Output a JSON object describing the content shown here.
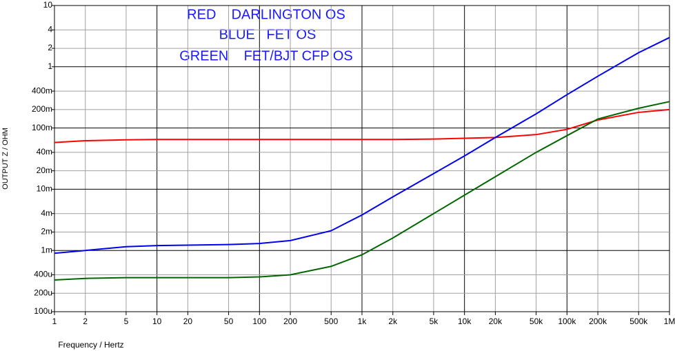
{
  "chart_data": {
    "type": "line",
    "annotations": [
      "RED    DARLINGTON OS",
      "BLUE   FET OS",
      "GREEN    FET/BJT CFP OS"
    ],
    "annotation_color": "#1a1aff",
    "xlabel": "Frequency / Hertz",
    "ylabel": "OUTPUT Z / OHM",
    "log_x": true,
    "log_y": true,
    "grid": true,
    "xlim": [
      1,
      1000000
    ],
    "ylim": [
      0.0001,
      10
    ],
    "xticks": [
      1,
      2,
      5,
      10,
      20,
      50,
      100,
      200,
      500,
      {
        "value": 1000,
        "label": "1k"
      },
      {
        "value": 2000,
        "label": "2k"
      },
      {
        "value": 5000,
        "label": "5k"
      },
      {
        "value": 10000,
        "label": "10k"
      },
      {
        "value": 20000,
        "label": "20k"
      },
      {
        "value": 50000,
        "label": "50k"
      },
      {
        "value": 100000,
        "label": "100k"
      },
      {
        "value": 200000,
        "label": "200k"
      },
      {
        "value": 500000,
        "label": "500k"
      },
      {
        "value": 1000000,
        "label": "1M"
      }
    ],
    "yticks": [
      {
        "value": 0.0001,
        "label": "100u"
      },
      {
        "value": 0.0002,
        "label": "200u"
      },
      {
        "value": 0.0004,
        "label": "400u"
      },
      {
        "value": 0.001,
        "label": "1m"
      },
      {
        "value": 0.002,
        "label": "2m"
      },
      {
        "value": 0.004,
        "label": "4m"
      },
      {
        "value": 0.01,
        "label": "10m"
      },
      {
        "value": 0.02,
        "label": "20m"
      },
      {
        "value": 0.04,
        "label": "40m"
      },
      {
        "value": 0.1,
        "label": "100m"
      },
      {
        "value": 0.2,
        "label": "200m"
      },
      {
        "value": 0.4,
        "label": "400m"
      },
      1,
      2,
      4,
      10
    ],
    "x": [
      1,
      2,
      5,
      10,
      20,
      50,
      100,
      200,
      500,
      1000,
      2000,
      5000,
      10000,
      20000,
      50000,
      100000,
      200000,
      500000,
      1000000
    ],
    "series": [
      {
        "name": "RED",
        "color": "#ff0000",
        "values": [
          0.058,
          0.062,
          0.064,
          0.065,
          0.065,
          0.065,
          0.065,
          0.065,
          0.065,
          0.065,
          0.065,
          0.066,
          0.068,
          0.07,
          0.078,
          0.095,
          0.135,
          0.18,
          0.2
        ]
      },
      {
        "name": "BLUE",
        "color": "#0000ee",
        "values": [
          0.0009,
          0.001,
          0.00115,
          0.0012,
          0.00122,
          0.00125,
          0.0013,
          0.00145,
          0.0021,
          0.0038,
          0.0075,
          0.018,
          0.035,
          0.07,
          0.17,
          0.35,
          0.7,
          1.7,
          3
        ]
      },
      {
        "name": "GREEN",
        "color": "#006600",
        "values": [
          0.00033,
          0.00035,
          0.00036,
          0.00036,
          0.00036,
          0.00036,
          0.00037,
          0.0004,
          0.00055,
          0.00085,
          0.0016,
          0.004,
          0.008,
          0.016,
          0.04,
          0.075,
          0.14,
          0.21,
          0.27
        ]
      }
    ]
  }
}
